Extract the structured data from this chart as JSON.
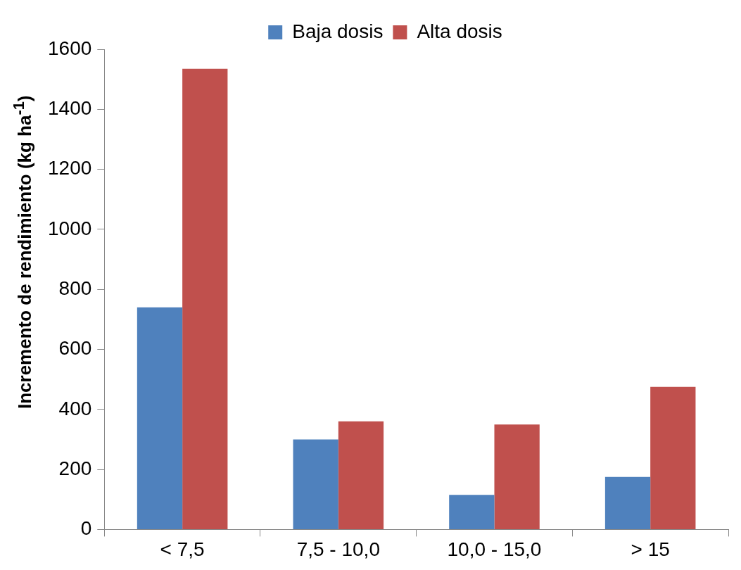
{
  "chart_data": {
    "type": "bar",
    "ylabel": "Incremento de rendimiento (kg ha$^{-1}$)",
    "categories": [
      "< 7,5",
      "7,5 - 10,0",
      "10,0 - 15,0",
      "> 15"
    ],
    "series": [
      {
        "name": "Baja dosis",
        "color": "#4f81bd",
        "values": [
          740,
          300,
          115,
          175
        ]
      },
      {
        "name": "Alta dosis",
        "color": "#c0504d",
        "values": [
          1535,
          360,
          350,
          475
        ]
      }
    ],
    "ylim": [
      0,
      1600
    ],
    "yticks": [
      0,
      200,
      400,
      600,
      800,
      1000,
      1200,
      1400,
      1600
    ],
    "grid": false,
    "legend": "top"
  }
}
